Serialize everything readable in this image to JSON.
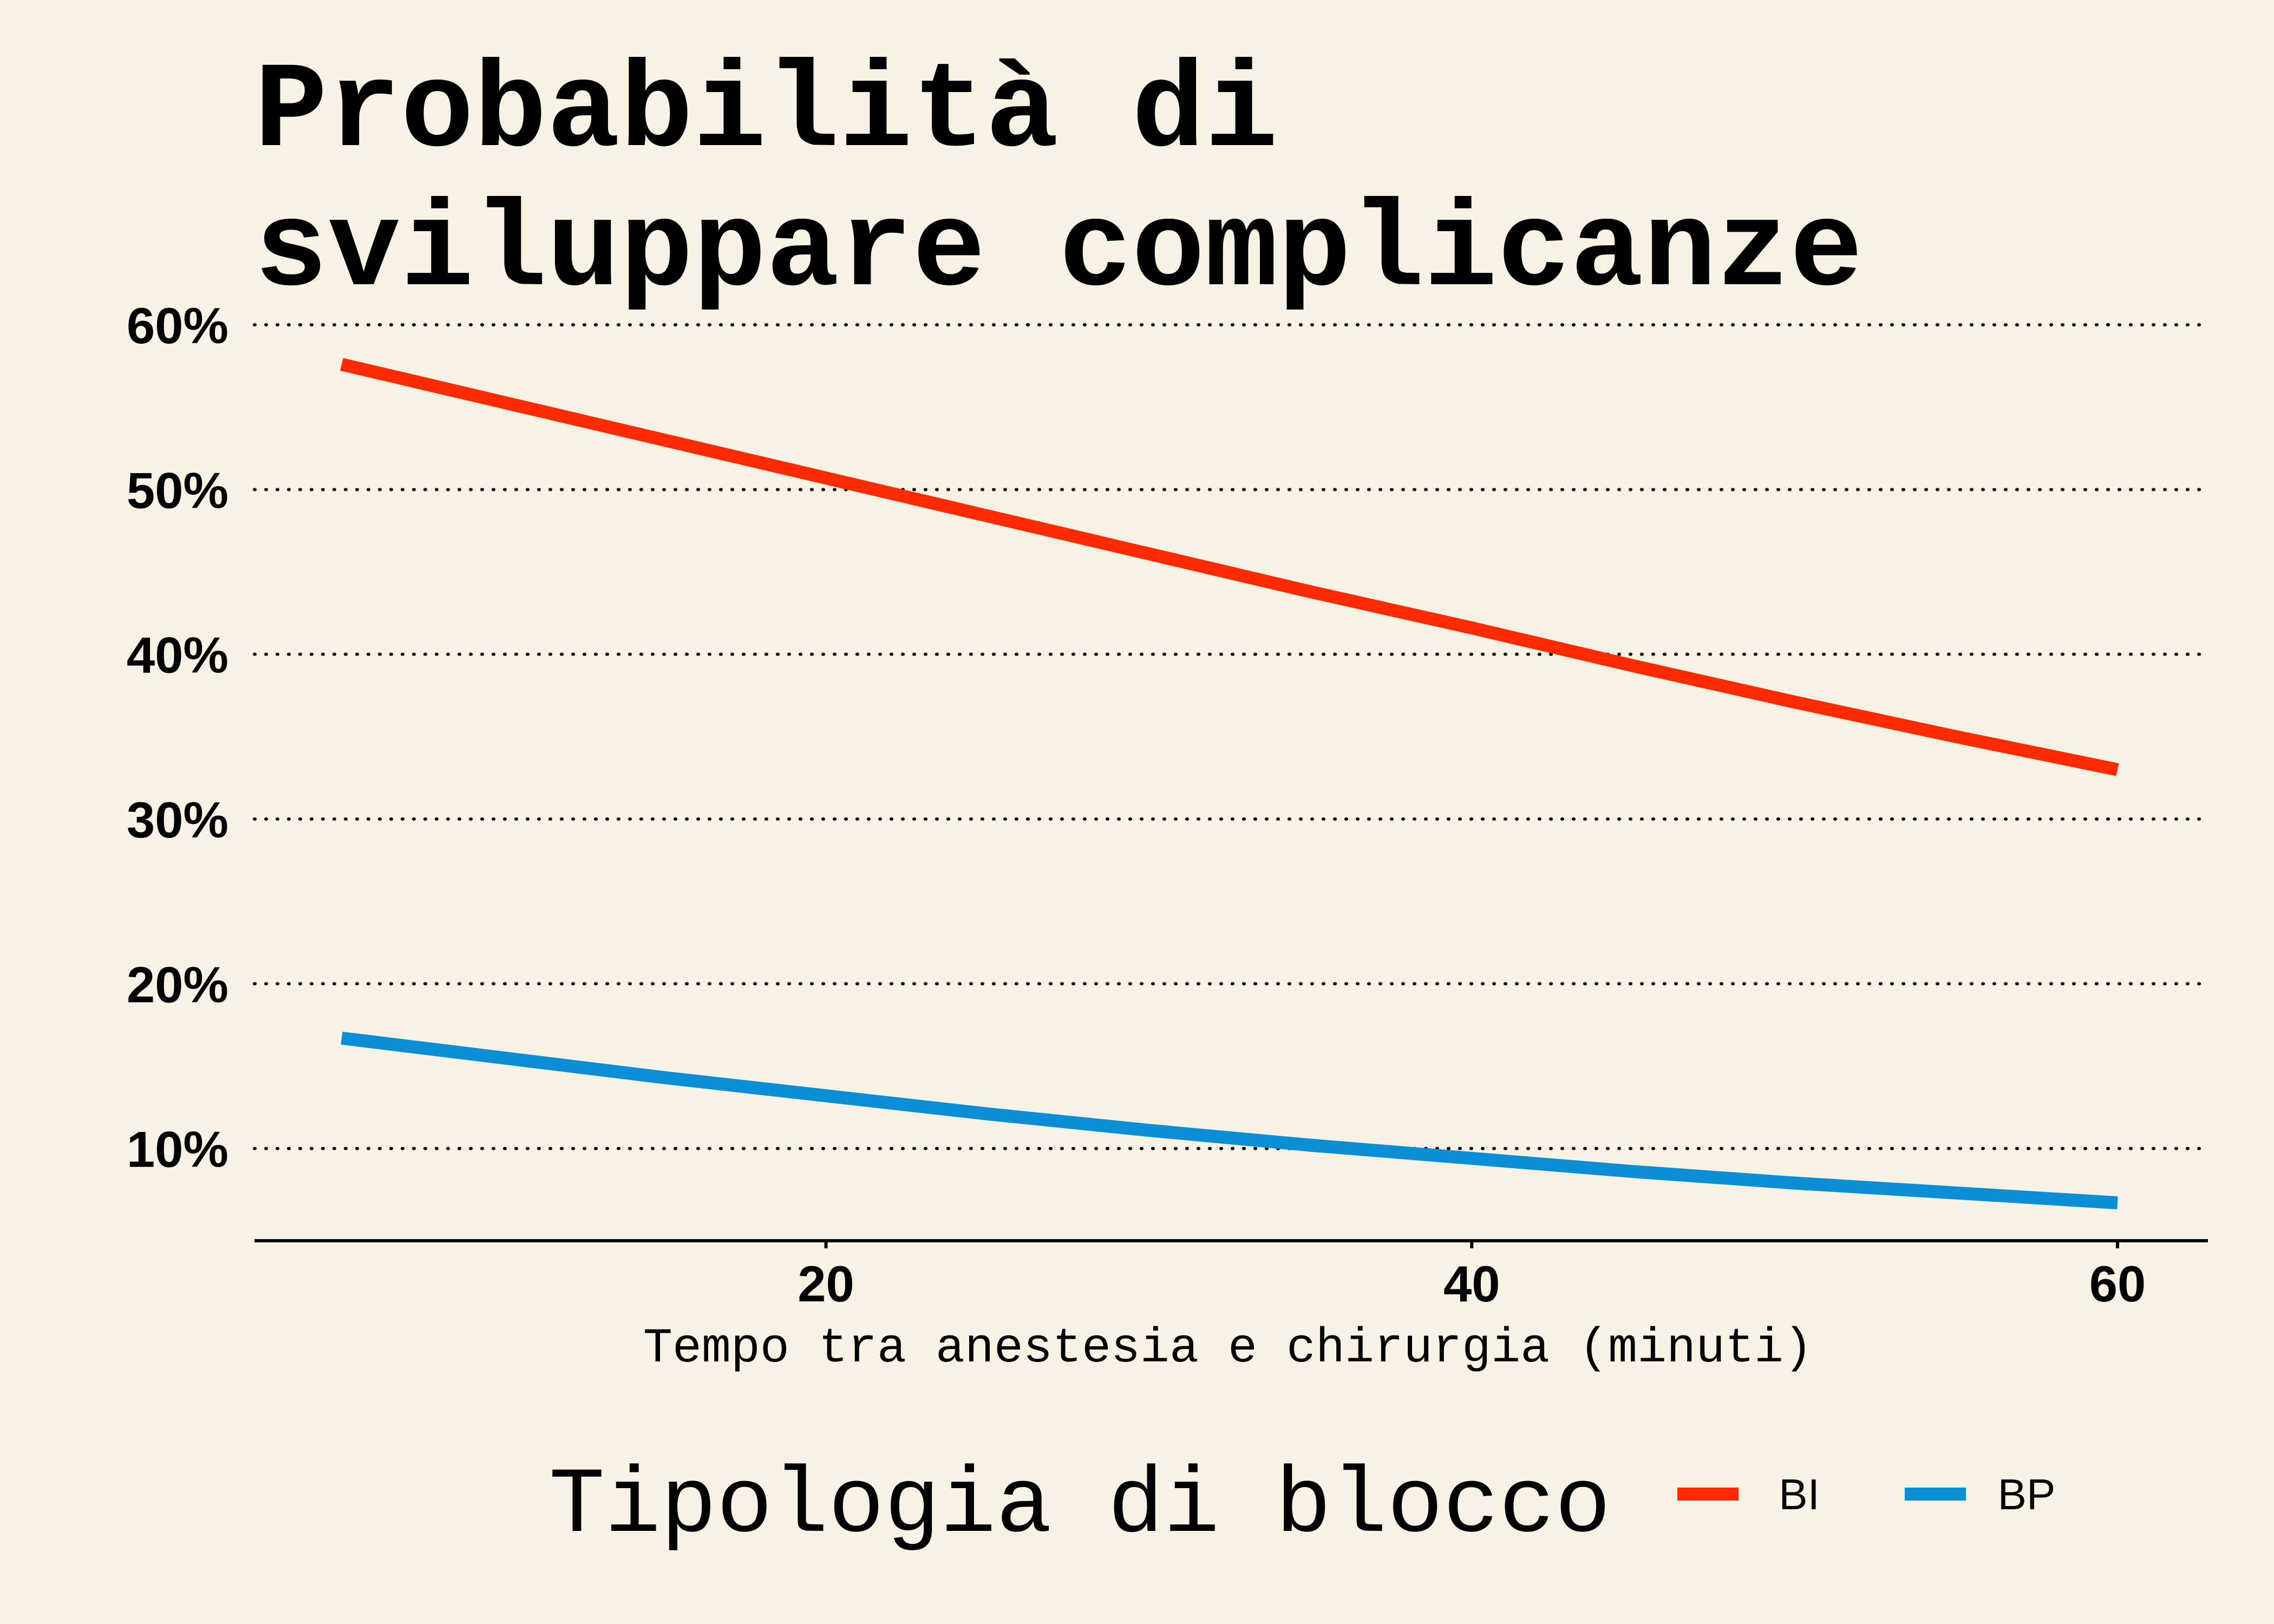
{
  "chart_data": {
    "type": "line",
    "title": "Probabilità di sviluppare complicanze",
    "title_lines": [
      "Probabilità di",
      "sviluppare complicanze"
    ],
    "xlabel": "Tempo tra anestesia e chirurgia (minuti)",
    "ylabel": "",
    "x_ticks": [
      20,
      40,
      60
    ],
    "y_ticks": [
      0.1,
      0.2,
      0.3,
      0.4,
      0.5,
      0.6
    ],
    "y_tick_labels": [
      "10%",
      "20%",
      "30%",
      "40%",
      "50%",
      "60%"
    ],
    "xlim": [
      2.3,
      62.8
    ],
    "ylim": [
      0.044,
      0.6
    ],
    "grid": "horizontal dotted",
    "legend": {
      "title": "Tipologia di blocco",
      "placement": "bottom"
    },
    "series": [
      {
        "name": "BI",
        "color": "#FF2A00",
        "x": [
          5,
          10,
          15,
          20,
          25,
          30,
          35,
          40,
          45,
          50,
          55,
          60
        ],
        "y": [
          0.576,
          0.553,
          0.53,
          0.507,
          0.484,
          0.461,
          0.438,
          0.416,
          0.393,
          0.371,
          0.35,
          0.33
        ]
      },
      {
        "name": "BP",
        "color": "#0A8FD6",
        "x": [
          5,
          10,
          15,
          20,
          25,
          30,
          35,
          40,
          45,
          50,
          55,
          60
        ],
        "y": [
          0.167,
          0.155,
          0.143,
          0.132,
          0.121,
          0.111,
          0.102,
          0.094,
          0.086,
          0.079,
          0.073,
          0.067
        ]
      }
    ]
  }
}
